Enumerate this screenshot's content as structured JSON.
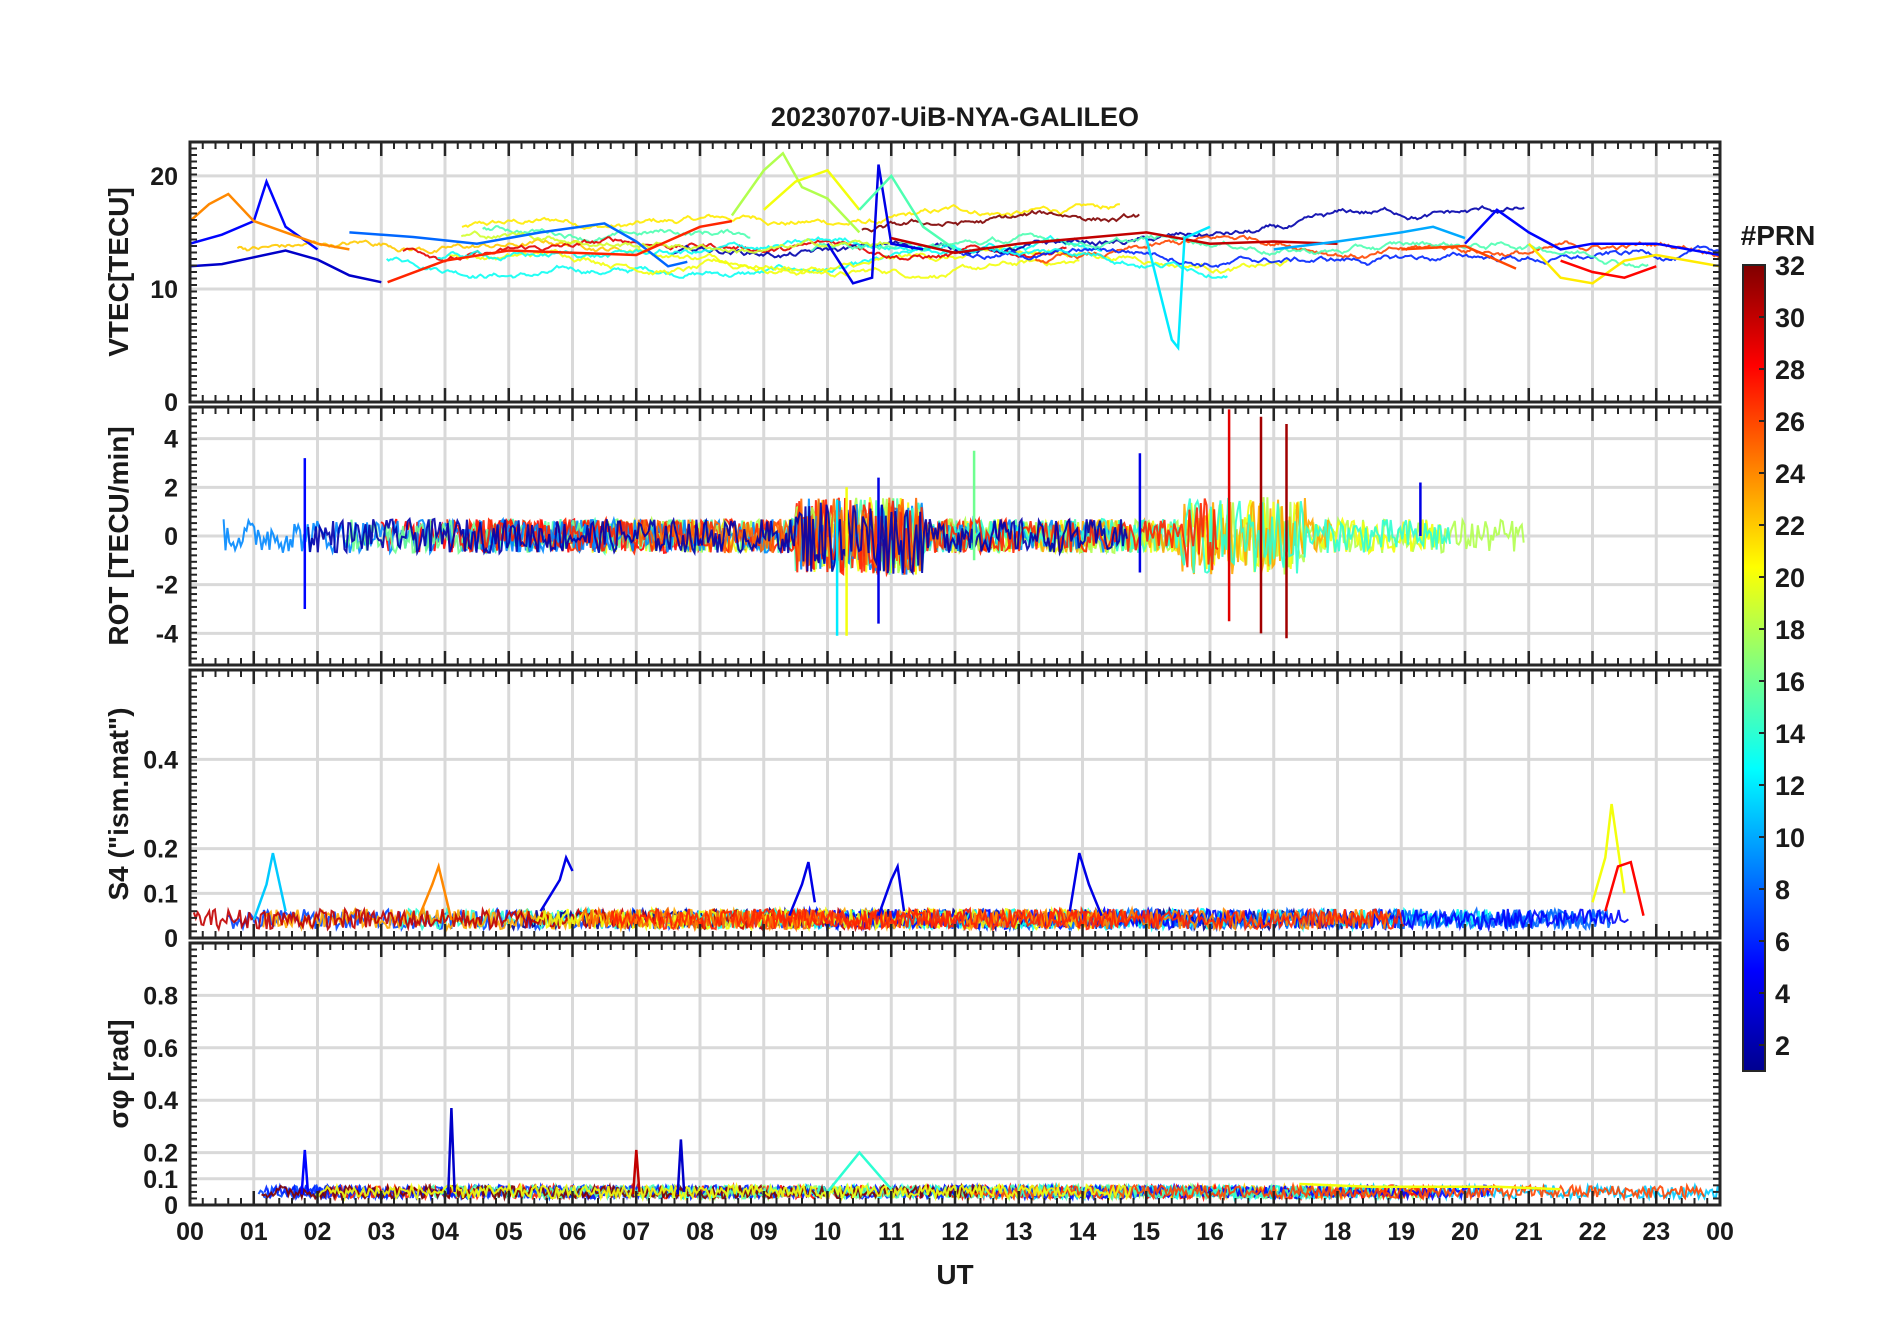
{
  "figure": {
    "title": "20230707-UiB-NYA-GALILEO",
    "x_label": "UT",
    "x_ticks": [
      "00",
      "01",
      "02",
      "03",
      "04",
      "05",
      "06",
      "07",
      "08",
      "09",
      "10",
      "11",
      "12",
      "13",
      "14",
      "15",
      "16",
      "17",
      "18",
      "19",
      "20",
      "21",
      "22",
      "23",
      "00"
    ]
  },
  "colorbar": {
    "title": "#PRN",
    "ticks": [
      "2",
      "4",
      "6",
      "8",
      "10",
      "12",
      "14",
      "16",
      "18",
      "20",
      "22",
      "24",
      "26",
      "28",
      "30",
      "32"
    ],
    "range": [
      1,
      32
    ],
    "colormap": "jet",
    "colors": [
      "#00008f",
      "#0000ff",
      "#0080ff",
      "#00ffff",
      "#80ff80",
      "#ffff00",
      "#ff8000",
      "#ff0000",
      "#800000"
    ]
  },
  "chart_data": [
    {
      "type": "line",
      "name": "vtec",
      "ylabel": "VTEC[TECU]",
      "ylim": [
        0,
        23
      ],
      "yticks": [
        0,
        10,
        20
      ],
      "ytick_labels": [
        "0",
        "10",
        "20"
      ],
      "xlim": [
        0,
        24
      ],
      "description_of_series": "Many GALILEO PRN traces, baseline ~12-16 TECU, peak ~22 around 09-10 UT, cyan dip to ~5 at 15.5 UT",
      "series": [
        {
          "prn": 3,
          "x": [
            0.0,
            0.5,
            1.0,
            1.5,
            2.0,
            2.5,
            3.0
          ],
          "y": [
            12.0,
            12.2,
            12.8,
            13.4,
            12.6,
            11.2,
            10.6
          ]
        },
        {
          "prn": 5,
          "x": [
            0.0,
            0.5,
            1.0,
            1.2,
            1.5,
            2.0
          ],
          "y": [
            14.0,
            14.8,
            16.0,
            19.5,
            15.5,
            13.5
          ]
        },
        {
          "prn": 24,
          "x": [
            0.0,
            0.3,
            0.6,
            1.0,
            1.5,
            2.0,
            2.5
          ],
          "y": [
            16.0,
            17.5,
            18.4,
            16.0,
            15.0,
            14.0,
            13.5
          ]
        },
        {
          "prn": 8,
          "x": [
            2.5,
            3.5,
            4.5,
            5.5,
            6.5,
            7.0,
            7.5,
            7.8
          ],
          "y": [
            15.0,
            14.6,
            14.0,
            15.0,
            15.8,
            14.2,
            12.0,
            12.4
          ]
        },
        {
          "prn": 27,
          "x": [
            3.1,
            4.0,
            5.0,
            6.0,
            7.0,
            8.0,
            8.5
          ],
          "y": [
            10.6,
            12.5,
            13.4,
            13.2,
            13.0,
            15.5,
            16.0
          ]
        },
        {
          "prn": 18,
          "x": [
            8.5,
            9.0,
            9.3,
            9.6,
            10.0,
            10.5
          ],
          "y": [
            16.5,
            20.5,
            22.0,
            19.0,
            18.0,
            15.0
          ]
        },
        {
          "prn": 20,
          "x": [
            9.0,
            9.5,
            10.0,
            10.5
          ],
          "y": [
            17.0,
            19.5,
            20.5,
            17.0
          ]
        },
        {
          "prn": 4,
          "x": [
            10.0,
            10.4,
            10.7,
            10.8,
            11.0,
            11.5
          ],
          "y": [
            14.0,
            10.5,
            11.0,
            21.0,
            14.0,
            13.5
          ]
        },
        {
          "prn": 15,
          "x": [
            10.5,
            11.0,
            11.5,
            12.0
          ],
          "y": [
            17.0,
            20.0,
            15.5,
            13.5
          ]
        },
        {
          "prn": 30,
          "x": [
            11.0,
            12.0,
            13.0,
            14.0,
            15.0,
            16.0,
            17.0,
            18.0
          ],
          "y": [
            14.5,
            13.2,
            14.0,
            14.5,
            15.0,
            14.0,
            14.2,
            14.0
          ]
        },
        {
          "prn": 12,
          "x": [
            15.0,
            15.4,
            15.5,
            15.6,
            16.0
          ],
          "y": [
            14.5,
            5.5,
            4.8,
            14.5,
            15.5
          ]
        },
        {
          "prn": 10,
          "x": [
            17.0,
            18.0,
            19.0,
            19.5,
            20.0
          ],
          "y": [
            13.5,
            14.2,
            15.0,
            15.5,
            14.5
          ]
        },
        {
          "prn": 26,
          "x": [
            19.0,
            20.0,
            20.8
          ],
          "y": [
            13.5,
            13.8,
            11.8
          ]
        },
        {
          "prn": 5,
          "x": [
            20.0,
            20.5,
            21.0,
            21.5,
            22.0,
            23.0,
            24.0
          ],
          "y": [
            14.0,
            17.0,
            15.0,
            13.5,
            14.0,
            14.0,
            13.0
          ]
        },
        {
          "prn": 21,
          "x": [
            21.0,
            21.5,
            22.0,
            22.5,
            23.0,
            24.0
          ],
          "y": [
            14.0,
            11.0,
            10.5,
            12.5,
            13.0,
            12.0
          ]
        },
        {
          "prn": 28,
          "x": [
            21.5,
            22.0,
            22.5,
            23.0
          ],
          "y": [
            12.5,
            11.5,
            11.0,
            12.0
          ]
        }
      ]
    },
    {
      "type": "line",
      "name": "rot",
      "ylabel": "ROT [TECU/min]",
      "ylim": [
        -5.3,
        5.3
      ],
      "yticks": [
        -4,
        -2,
        0,
        2,
        4
      ],
      "ytick_labels": [
        "-4",
        "-2",
        "0",
        "2",
        "4"
      ],
      "xlim": [
        0,
        24
      ],
      "description_of_series": "Noisy fluctuations around 0 TECU/min, spikes up to ~5 and down to ~-4.2 near 10-11 UT and 16.5-17.2 UT",
      "series": [
        {
          "prn": 5,
          "x": [
            1.8,
            1.8
          ],
          "y": [
            -3.0,
            3.2
          ]
        },
        {
          "prn": 12,
          "x": [
            10.15,
            10.15
          ],
          "y": [
            -4.1,
            1.5
          ]
        },
        {
          "prn": 20,
          "x": [
            10.3,
            10.3
          ],
          "y": [
            -4.1,
            2.0
          ]
        },
        {
          "prn": 4,
          "x": [
            10.8,
            10.8
          ],
          "y": [
            -3.6,
            2.4
          ]
        },
        {
          "prn": 16,
          "x": [
            12.3,
            12.3
          ],
          "y": [
            -1.0,
            3.5
          ]
        },
        {
          "prn": 4,
          "x": [
            14.9,
            14.9
          ],
          "y": [
            -1.5,
            3.4
          ]
        },
        {
          "prn": 29,
          "x": [
            16.3,
            16.3
          ],
          "y": [
            -3.5,
            5.2
          ]
        },
        {
          "prn": 31,
          "x": [
            16.8,
            16.8
          ],
          "y": [
            -4.0,
            4.9
          ]
        },
        {
          "prn": 31,
          "x": [
            17.2,
            17.2
          ],
          "y": [
            -4.2,
            4.6
          ]
        },
        {
          "prn": 4,
          "x": [
            19.3,
            19.3
          ],
          "y": [
            0.0,
            2.2
          ]
        }
      ]
    },
    {
      "type": "line",
      "name": "s4",
      "ylabel": "S4 (\"ism.mat\")",
      "ylim": [
        0,
        0.6
      ],
      "yticks": [
        0,
        0.1,
        0.2,
        0.4
      ],
      "ytick_labels": [
        "0",
        "0.1",
        "0.2",
        "0.4"
      ],
      "xlim": [
        0,
        24
      ],
      "description_of_series": "Amplitude scintillation index mostly 0.02-0.08 with bursts to ~0.19 at 01.3, 04, 05.9, 09.6, 11, 14 UT and peak ~0.30 at 22.2 UT",
      "series": [
        {
          "prn": 11,
          "x": [
            1.0,
            1.2,
            1.3,
            1.5
          ],
          "y": [
            0.04,
            0.12,
            0.19,
            0.06
          ]
        },
        {
          "prn": 24,
          "x": [
            3.6,
            3.8,
            3.9,
            4.1
          ],
          "y": [
            0.05,
            0.12,
            0.16,
            0.04
          ]
        },
        {
          "prn": 4,
          "x": [
            5.5,
            5.8,
            5.9,
            6.0
          ],
          "y": [
            0.06,
            0.13,
            0.18,
            0.15
          ]
        },
        {
          "prn": 4,
          "x": [
            9.4,
            9.6,
            9.7,
            9.8
          ],
          "y": [
            0.05,
            0.12,
            0.17,
            0.08
          ]
        },
        {
          "prn": 4,
          "x": [
            10.8,
            11.0,
            11.1,
            11.2
          ],
          "y": [
            0.05,
            0.13,
            0.16,
            0.06
          ]
        },
        {
          "prn": 4,
          "x": [
            13.8,
            13.95,
            14.1,
            14.3
          ],
          "y": [
            0.06,
            0.19,
            0.12,
            0.05
          ]
        },
        {
          "prn": 20,
          "x": [
            22.0,
            22.2,
            22.3,
            22.5
          ],
          "y": [
            0.08,
            0.18,
            0.3,
            0.1
          ]
        },
        {
          "prn": 28,
          "x": [
            22.2,
            22.4,
            22.6,
            22.8
          ],
          "y": [
            0.06,
            0.16,
            0.17,
            0.05
          ]
        }
      ]
    },
    {
      "type": "line",
      "name": "sigma_phi",
      "ylabel": "σφ [rad]",
      "ylim": [
        0,
        1.0
      ],
      "yticks": [
        0,
        0.1,
        0.2,
        0.4,
        0.6,
        0.8
      ],
      "ytick_labels": [
        "0",
        "0.1",
        "0.2",
        "0.4",
        "0.6",
        "0.8"
      ],
      "xlim": [
        0,
        24
      ],
      "description_of_series": "Phase scintillation index mostly 0.02-0.08 with spikes ~0.37 at 04.1 UT, ~0.21 at 07.0 and 01.8 UT, ~0.25 at 07.7 UT",
      "series": [
        {
          "prn": 5,
          "x": [
            1.75,
            1.8,
            1.85
          ],
          "y": [
            0.04,
            0.21,
            0.05
          ]
        },
        {
          "prn": 3,
          "x": [
            4.05,
            4.1,
            4.15
          ],
          "y": [
            0.04,
            0.37,
            0.05
          ]
        },
        {
          "prn": 30,
          "x": [
            6.95,
            7.0,
            7.05
          ],
          "y": [
            0.04,
            0.21,
            0.05
          ]
        },
        {
          "prn": 3,
          "x": [
            7.65,
            7.7,
            7.75
          ],
          "y": [
            0.04,
            0.25,
            0.05
          ]
        },
        {
          "prn": 14,
          "x": [
            10.0,
            10.5,
            11.0
          ],
          "y": [
            0.05,
            0.2,
            0.06
          ]
        },
        {
          "prn": 20,
          "x": [
            17.4,
            18.5,
            19.5,
            20.5,
            21.5
          ],
          "y": [
            0.08,
            0.07,
            0.07,
            0.07,
            0.06
          ]
        }
      ]
    }
  ]
}
